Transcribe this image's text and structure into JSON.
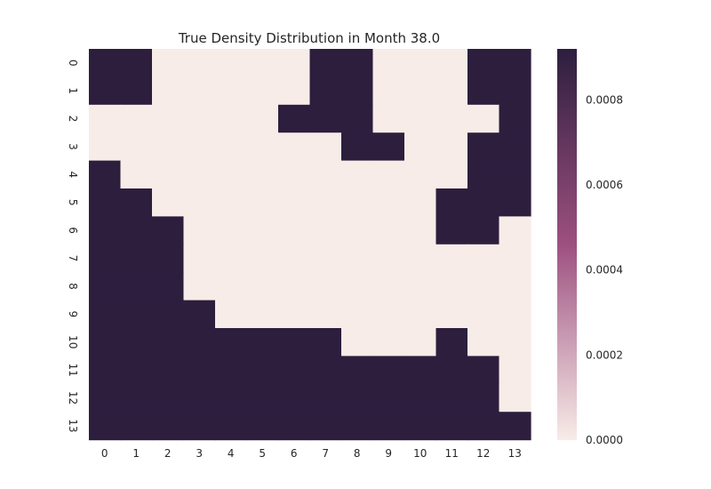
{
  "chart_data": {
    "type": "heatmap",
    "title": "True Density Distribution in Month 38.0",
    "xlabel": "",
    "ylabel": "",
    "x_tick_labels": [
      "0",
      "1",
      "2",
      "3",
      "4",
      "5",
      "6",
      "7",
      "8",
      "9",
      "10",
      "11",
      "12",
      "13"
    ],
    "y_tick_labels": [
      "0",
      "1",
      "2",
      "3",
      "4",
      "5",
      "6",
      "7",
      "8",
      "9",
      "10",
      "11",
      "12",
      "13"
    ],
    "value_range": [
      0,
      0.00092
    ],
    "colorbar": {
      "ticks": [
        0.0,
        0.0002,
        0.0004,
        0.0006,
        0.0008
      ],
      "tick_labels": [
        "0.0000",
        "0.0002",
        "0.0004",
        "0.0006",
        "0.0008"
      ]
    },
    "colormap": {
      "low": "#f8ece8",
      "mid": "#9d5080",
      "high": "#2d1e3e"
    },
    "grid": false,
    "values": [
      [
        0.00092,
        0.00092,
        0,
        0,
        0,
        0,
        0,
        0.00092,
        0.00092,
        0,
        0,
        0,
        0.00092,
        0.00092
      ],
      [
        0.00092,
        0.00092,
        0,
        0,
        0,
        0,
        0,
        0.00092,
        0.00092,
        0,
        0,
        0,
        0.00092,
        0.00092
      ],
      [
        0,
        0,
        0,
        0,
        0,
        0,
        0.00092,
        0.00092,
        0.00092,
        0,
        0,
        0,
        0,
        0.00092
      ],
      [
        0,
        0,
        0,
        0,
        0,
        0,
        0,
        0,
        0.00092,
        0.00092,
        0,
        0,
        0.00092,
        0.00092
      ],
      [
        0.00092,
        0,
        0,
        0,
        0,
        0,
        0,
        0,
        0,
        0,
        0,
        0,
        0.00092,
        0.00092
      ],
      [
        0.00092,
        0.00092,
        0,
        0,
        0,
        0,
        0,
        0,
        0,
        0,
        0,
        0.00092,
        0.00092,
        0.00092
      ],
      [
        0.00092,
        0.00092,
        0.00092,
        0,
        0,
        0,
        0,
        0,
        0,
        0,
        0,
        0.00092,
        0.00092,
        0
      ],
      [
        0.00092,
        0.00092,
        0.00092,
        0,
        0,
        0,
        0,
        0,
        0,
        0,
        0,
        0,
        0,
        0
      ],
      [
        0.00092,
        0.00092,
        0.00092,
        0,
        0,
        0,
        0,
        0,
        0,
        0,
        0,
        0,
        0,
        0
      ],
      [
        0.00092,
        0.00092,
        0.00092,
        0.00092,
        0,
        0,
        0,
        0,
        0,
        0,
        0,
        0,
        0,
        0
      ],
      [
        0.00092,
        0.00092,
        0.00092,
        0.00092,
        0.00092,
        0.00092,
        0.00092,
        0.00092,
        0,
        0,
        0,
        0.00092,
        0,
        0
      ],
      [
        0.00092,
        0.00092,
        0.00092,
        0.00092,
        0.00092,
        0.00092,
        0.00092,
        0.00092,
        0.00092,
        0.00092,
        0.00092,
        0.00092,
        0.00092,
        0
      ],
      [
        0.00092,
        0.00092,
        0.00092,
        0.00092,
        0.00092,
        0.00092,
        0.00092,
        0.00092,
        0.00092,
        0.00092,
        0.00092,
        0.00092,
        0.00092,
        0
      ],
      [
        0.00092,
        0.00092,
        0.00092,
        0.00092,
        0.00092,
        0.00092,
        0.00092,
        0.00092,
        0.00092,
        0.00092,
        0.00092,
        0.00092,
        0.00092,
        0.00092
      ]
    ]
  }
}
